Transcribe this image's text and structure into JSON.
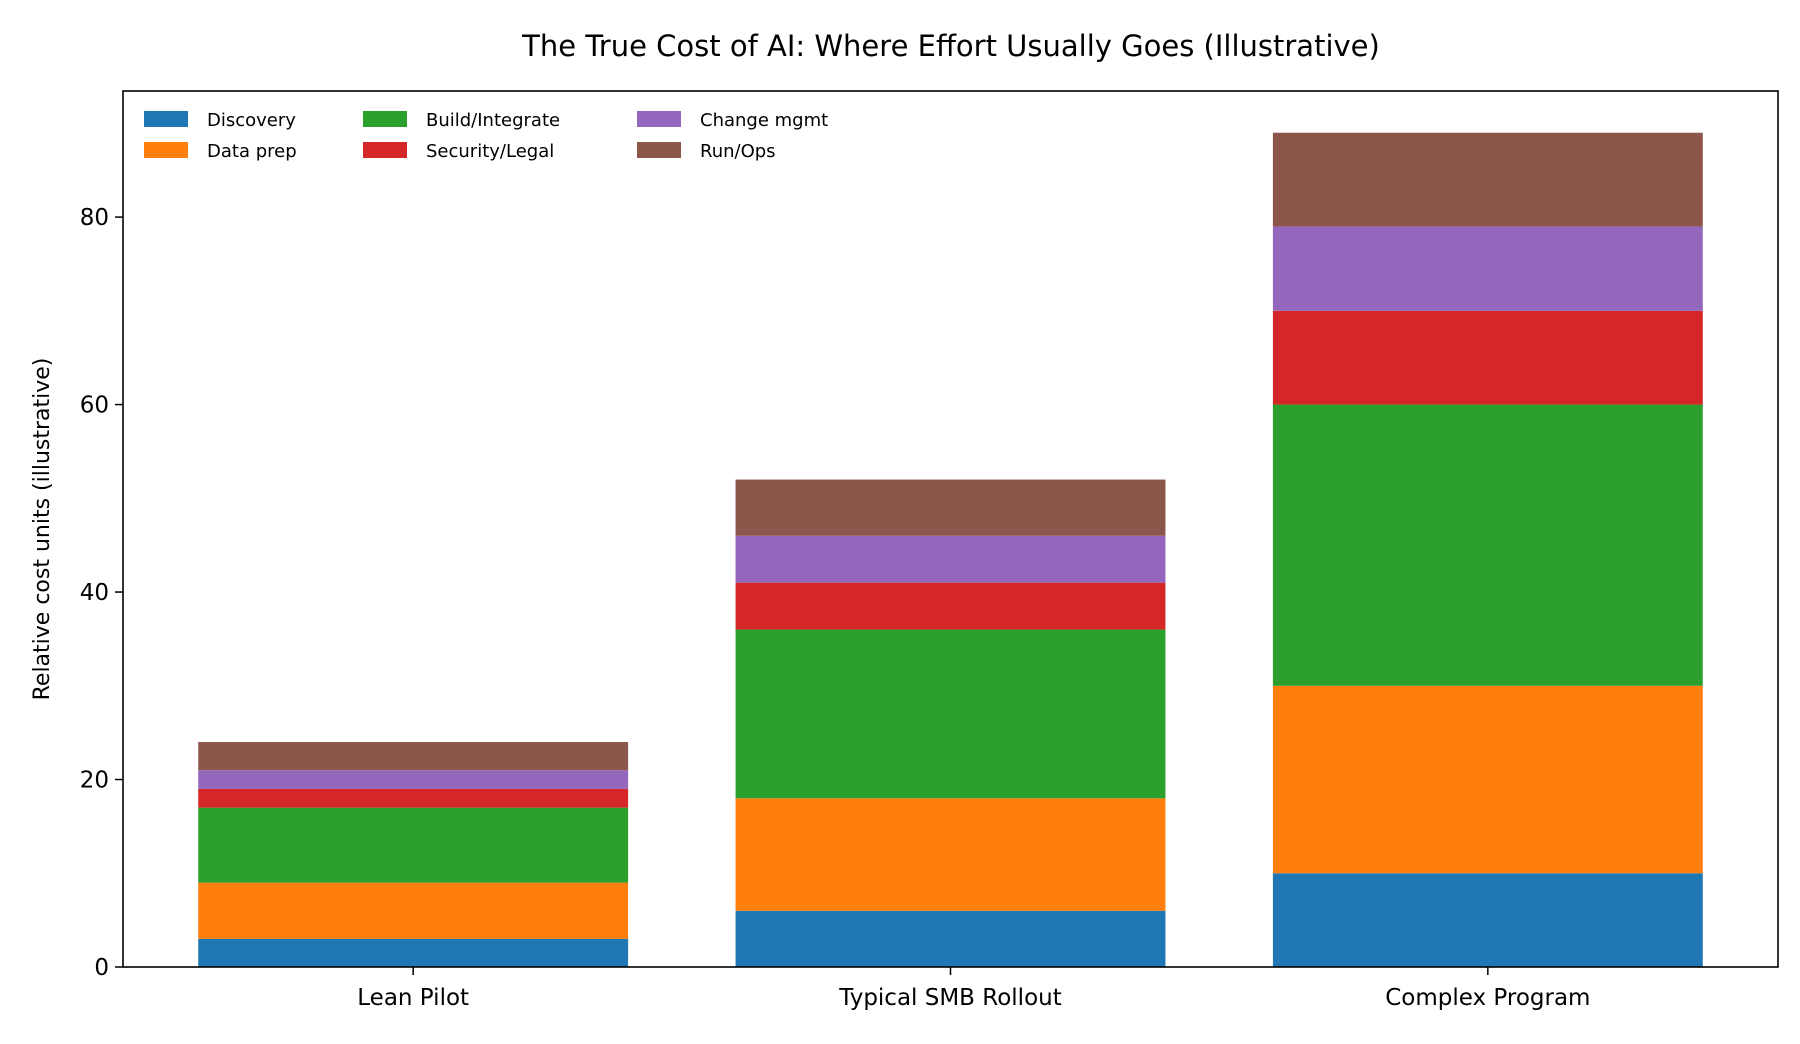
{
  "chart_data": {
    "type": "bar",
    "stacked": true,
    "title": "The True Cost of AI: Where Effort Usually Goes (Illustrative)",
    "xlabel": "",
    "ylabel": "Relative cost units (illustrative)",
    "categories": [
      "Lean Pilot",
      "Typical SMB Rollout",
      "Complex Program"
    ],
    "series": [
      {
        "name": "Discovery",
        "color": "#1f77b4",
        "values": [
          3,
          6,
          10
        ]
      },
      {
        "name": "Data prep",
        "color": "#ff7f0e",
        "values": [
          6,
          12,
          20
        ]
      },
      {
        "name": "Build/Integrate",
        "color": "#2ca02c",
        "values": [
          8,
          18,
          30
        ]
      },
      {
        "name": "Security/Legal",
        "color": "#d62728",
        "values": [
          2,
          5,
          10
        ]
      },
      {
        "name": "Change mgmt",
        "color": "#9467bd",
        "values": [
          2,
          5,
          9
        ]
      },
      {
        "name": "Run/Ops",
        "color": "#8c564b",
        "values": [
          3,
          6,
          10
        ]
      }
    ],
    "yticks": [
      0,
      20,
      40,
      60,
      80
    ],
    "ylim": [
      0,
      93.45
    ],
    "grid": false,
    "legend_placement": "upper-left"
  }
}
